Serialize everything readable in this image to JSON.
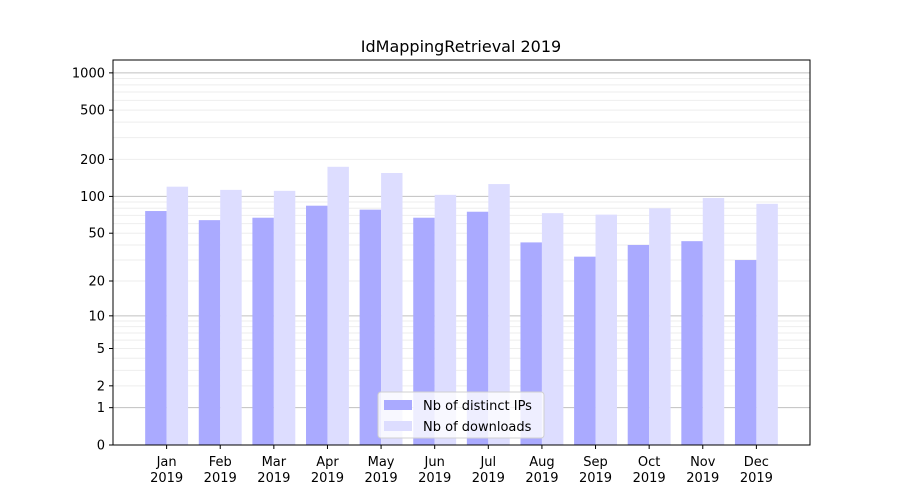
{
  "chart_data": {
    "type": "bar",
    "title": "IdMappingRetrieval 2019",
    "xlabel": "",
    "ylabel": "",
    "yscale": "symlog (log10(1+y))",
    "ylim": [
      0,
      1270
    ],
    "yticks": [
      0,
      1,
      2,
      5,
      10,
      20,
      50,
      100,
      200,
      500,
      1000
    ],
    "grid": true,
    "legend_position": "lower-center",
    "categories": [
      "Jan\n2019",
      "Feb\n2019",
      "Mar\n2019",
      "Apr\n2019",
      "May\n2019",
      "Jun\n2019",
      "Jul\n2019",
      "Aug\n2019",
      "Sep\n2019",
      "Oct\n2019",
      "Nov\n2019",
      "Dec\n2019"
    ],
    "series": [
      {
        "name": "Nb of distinct IPs",
        "color": "#aaaaff",
        "values": [
          76,
          64,
          67,
          84,
          78,
          67,
          75,
          42,
          32,
          40,
          43,
          30
        ]
      },
      {
        "name": "Nb of downloads",
        "color": "#ddddff",
        "values": [
          120,
          113,
          111,
          174,
          155,
          103,
          126,
          73,
          71,
          80,
          97,
          87
        ]
      }
    ]
  }
}
